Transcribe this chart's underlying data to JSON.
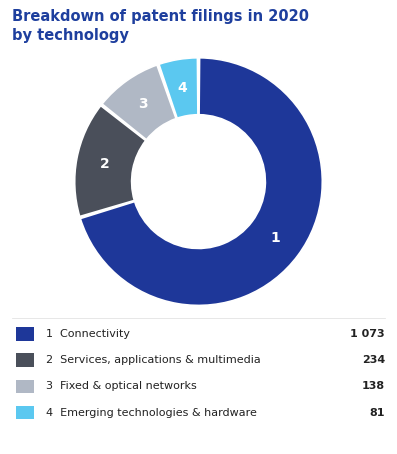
{
  "title": "Breakdown of patent filings in 2020\nby technology",
  "title_color": "#1e3f9e",
  "title_fontsize": 10.5,
  "values": [
    1073,
    234,
    138,
    81
  ],
  "labels": [
    "1",
    "2",
    "3",
    "4"
  ],
  "colors": [
    "#1e3799",
    "#4a4f5a",
    "#b0b8c5",
    "#5bc8f0"
  ],
  "donut_hole": 0.54,
  "legend_labels": [
    "1  Connectivity",
    "2  Services, applications & multimedia",
    "3  Fixed & optical networks",
    "4  Emerging technologies & hardware"
  ],
  "legend_values": [
    "1 073",
    "234",
    "138",
    "81"
  ],
  "legend_colors": [
    "#1e3799",
    "#4a4f5a",
    "#b0b8c5",
    "#5bc8f0"
  ],
  "background_color": "#ffffff",
  "start_angle": 90
}
